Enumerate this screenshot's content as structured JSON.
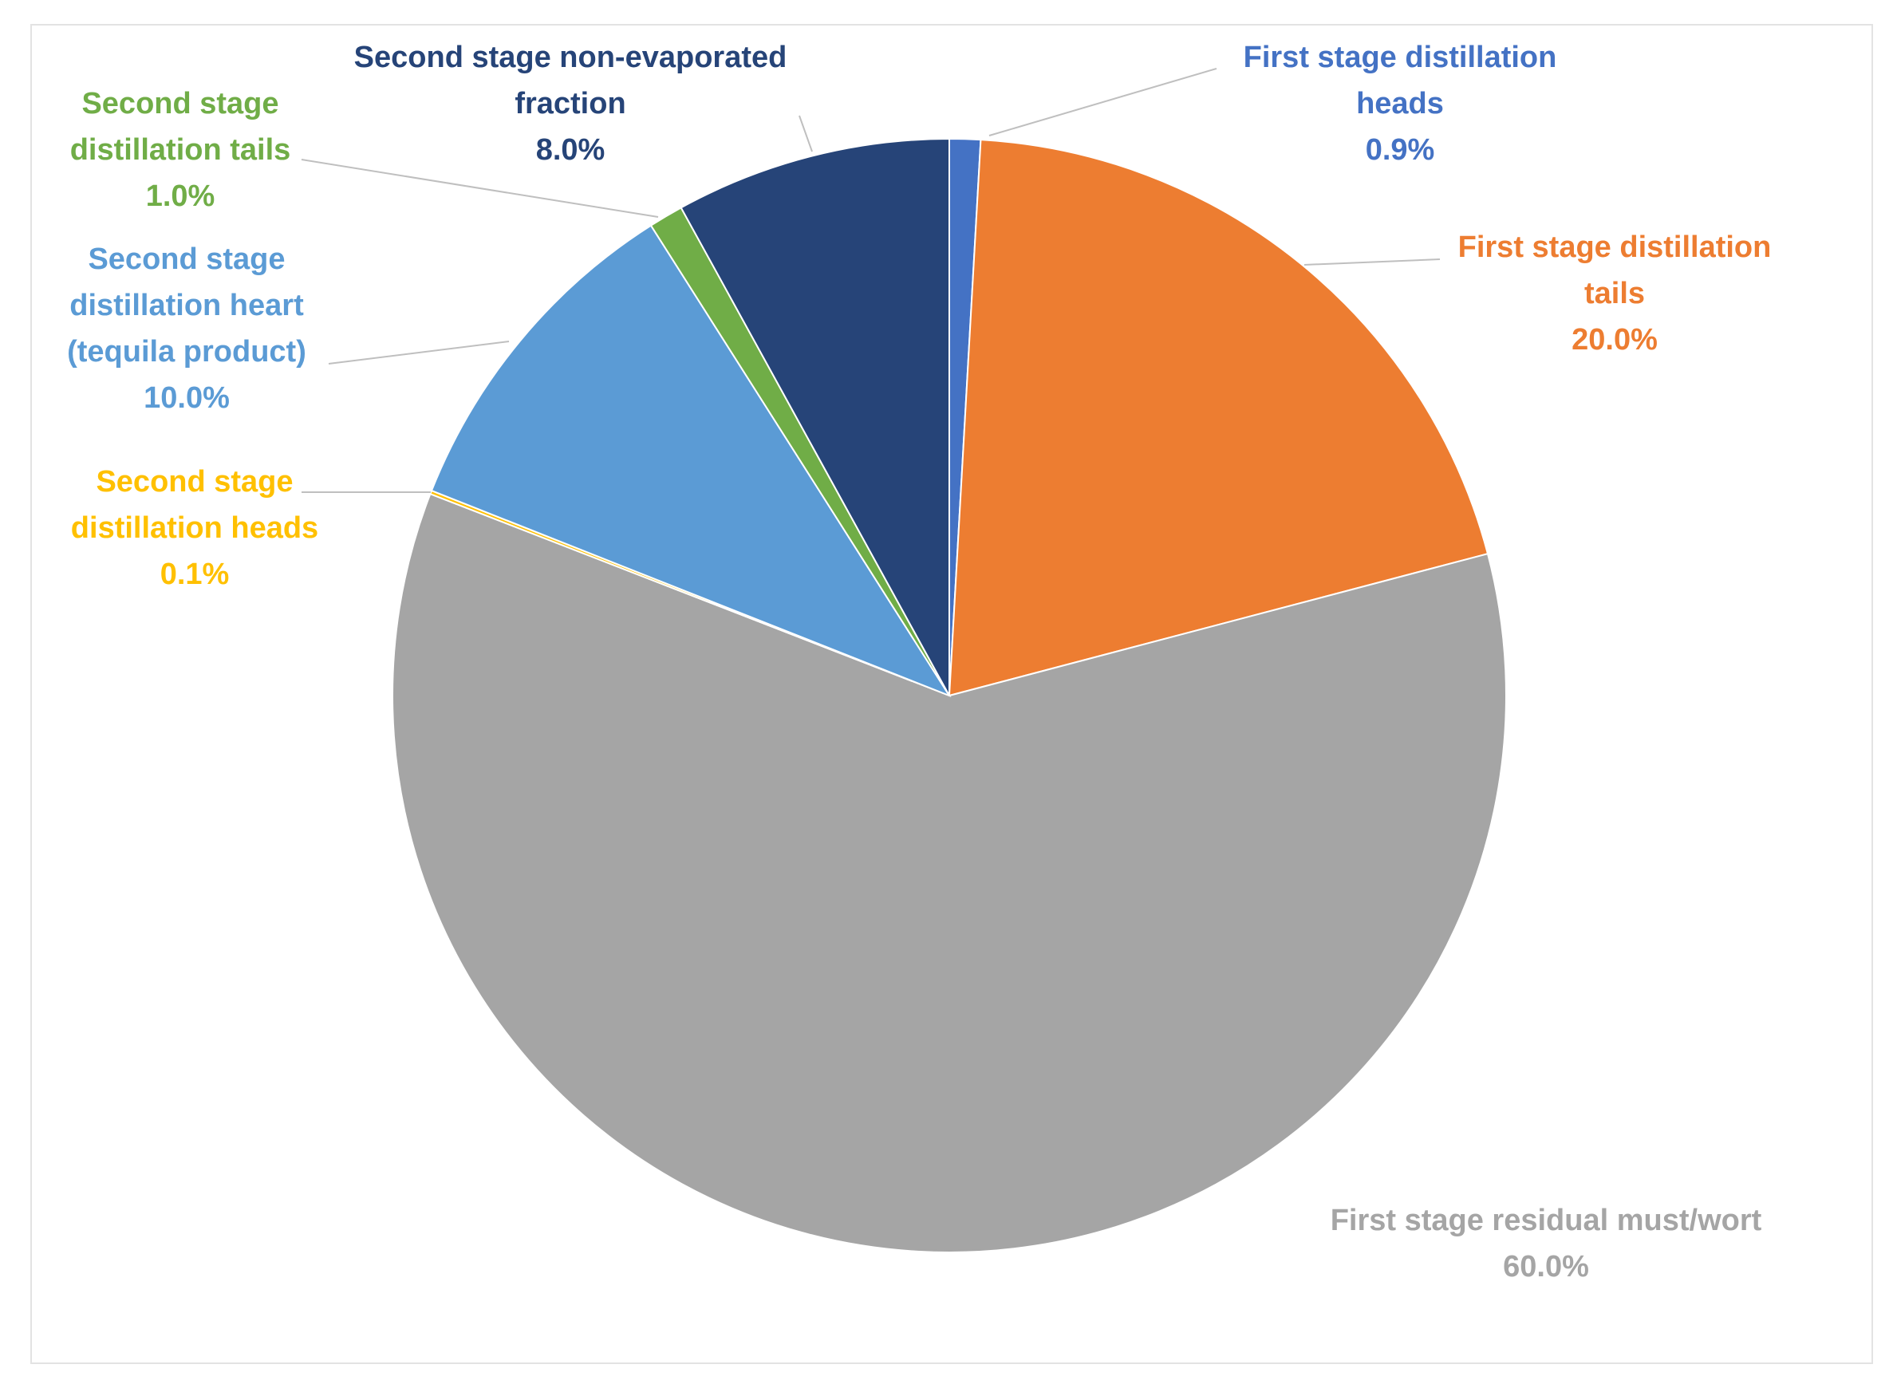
{
  "chart_data": {
    "type": "pie",
    "title": "",
    "start_angle_deg": 0,
    "direction": "clockwise",
    "series": [
      {
        "slices": [
          {
            "lines": [
              "First stage distillation",
              "heads"
            ],
            "pct_label": "0.9%",
            "value": 0.9,
            "color": "#4472c4"
          },
          {
            "lines": [
              "First stage distillation",
              "tails"
            ],
            "pct_label": "20.0%",
            "value": 20.0,
            "color": "#ed7d31"
          },
          {
            "lines": [
              "First stage residual must/wort"
            ],
            "pct_label": "60.0%",
            "value": 60.0,
            "color": "#a5a5a5"
          },
          {
            "lines": [
              "Second stage",
              "distillation heads"
            ],
            "pct_label": "0.1%",
            "value": 0.1,
            "color": "#ffc000"
          },
          {
            "lines": [
              "Second stage",
              "distillation heart",
              "(tequila product)"
            ],
            "pct_label": "10.0%",
            "value": 10.0,
            "color": "#5b9bd5"
          },
          {
            "lines": [
              "Second stage",
              "distillation tails"
            ],
            "pct_label": "1.0%",
            "value": 1.0,
            "color": "#70ad47"
          },
          {
            "lines": [
              "Second stage non-evaporated",
              "fraction"
            ],
            "pct_label": "8.0%",
            "value": 8.0,
            "color": "#264478"
          }
        ]
      }
    ],
    "legend": "none",
    "leader_line_color": "#bfbfbf"
  }
}
